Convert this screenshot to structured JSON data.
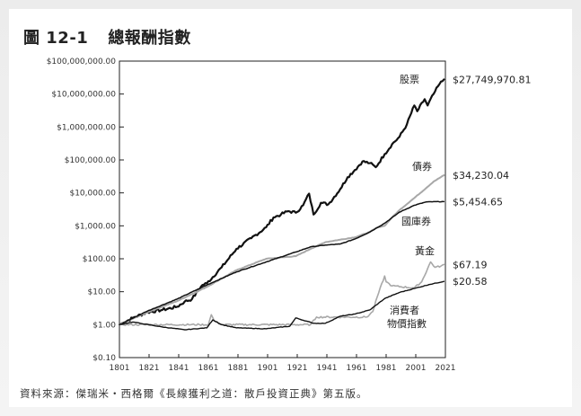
{
  "figure": {
    "number": "圖 12-1",
    "title": "總報酬指數",
    "source": "資料來源：傑瑞米・西格爾《長線獲利之道：散戶投資正典》第五版。"
  },
  "chart_data": {
    "type": "line",
    "y_scale": "log",
    "ylim": [
      0.1,
      100000000
    ],
    "xlim": [
      1801,
      2021
    ],
    "x_ticks": [
      "1801",
      "1821",
      "1841",
      "1861",
      "1881",
      "1901",
      "1921",
      "1941",
      "1961",
      "1981",
      "2001",
      "2021"
    ],
    "y_ticks": [
      {
        "value": 100000000,
        "label": "$100,000,000.00"
      },
      {
        "value": 10000000,
        "label": "$10,000,000.00"
      },
      {
        "value": 1000000,
        "label": "$1,000,000.00"
      },
      {
        "value": 100000,
        "label": "$100,000.00"
      },
      {
        "value": 10000,
        "label": "$10,000.00"
      },
      {
        "value": 1000,
        "label": "$1,000.00"
      },
      {
        "value": 100,
        "label": "$100.00"
      },
      {
        "value": 10,
        "label": "$10.00"
      },
      {
        "value": 1,
        "label": "$1.00"
      },
      {
        "value": 0.1,
        "label": "$0.10"
      }
    ],
    "series": [
      {
        "name": "股票",
        "end_label": "$27,749,970.81",
        "color": "#111111",
        "width": 2.2,
        "points": [
          [
            1801,
            1
          ],
          [
            1810,
            1.6
          ],
          [
            1820,
            2.4
          ],
          [
            1830,
            2.8
          ],
          [
            1840,
            3.5
          ],
          [
            1845,
            5
          ],
          [
            1850,
            6
          ],
          [
            1857,
            16
          ],
          [
            1860,
            18
          ],
          [
            1870,
            55
          ],
          [
            1880,
            200
          ],
          [
            1890,
            420
          ],
          [
            1900,
            900
          ],
          [
            1905,
            1800
          ],
          [
            1910,
            2200
          ],
          [
            1915,
            2800
          ],
          [
            1920,
            2500
          ],
          [
            1925,
            4200
          ],
          [
            1929,
            9500
          ],
          [
            1932,
            2200
          ],
          [
            1937,
            5000
          ],
          [
            1942,
            4500
          ],
          [
            1950,
            13000
          ],
          [
            1955,
            30000
          ],
          [
            1960,
            50000
          ],
          [
            1965,
            90000
          ],
          [
            1970,
            80000
          ],
          [
            1974,
            60000
          ],
          [
            1980,
            150000
          ],
          [
            1985,
            300000
          ],
          [
            1990,
            500000
          ],
          [
            1995,
            1200000
          ],
          [
            2000,
            4500000
          ],
          [
            2002,
            3000000
          ],
          [
            2007,
            7000000
          ],
          [
            2009,
            4500000
          ],
          [
            2013,
            10000000
          ],
          [
            2017,
            20000000
          ],
          [
            2020,
            27749970.81
          ]
        ]
      },
      {
        "name": "債券",
        "end_label": "$34,230.04",
        "color": "#a8a8a8",
        "width": 2,
        "points": [
          [
            1801,
            1
          ],
          [
            1820,
            2.4
          ],
          [
            1840,
            5.2
          ],
          [
            1860,
            14
          ],
          [
            1880,
            45
          ],
          [
            1900,
            100
          ],
          [
            1920,
            120
          ],
          [
            1930,
            200
          ],
          [
            1940,
            320
          ],
          [
            1950,
            380
          ],
          [
            1960,
            450
          ],
          [
            1970,
            650
          ],
          [
            1975,
            900
          ],
          [
            1980,
            1000
          ],
          [
            1985,
            1800
          ],
          [
            1990,
            3000
          ],
          [
            2000,
            7000
          ],
          [
            2008,
            14000
          ],
          [
            2013,
            22000
          ],
          [
            2020,
            34230.04
          ]
        ]
      },
      {
        "name": "國庫券",
        "end_label": "$5,454.65",
        "color": "#111111",
        "width": 1.5,
        "points": [
          [
            1801,
            1
          ],
          [
            1820,
            2.6
          ],
          [
            1840,
            6
          ],
          [
            1860,
            16
          ],
          [
            1880,
            40
          ],
          [
            1900,
            80
          ],
          [
            1920,
            160
          ],
          [
            1930,
            230
          ],
          [
            1940,
            260
          ],
          [
            1950,
            280
          ],
          [
            1960,
            400
          ],
          [
            1970,
            650
          ],
          [
            1980,
            1200
          ],
          [
            1990,
            2600
          ],
          [
            2000,
            4200
          ],
          [
            2008,
            5300
          ],
          [
            2020,
            5454.65
          ]
        ]
      },
      {
        "name": "黃金",
        "end_label": "$67.19",
        "color": "#a8a8a8",
        "width": 1.6,
        "points": [
          [
            1801,
            1
          ],
          [
            1855,
            1
          ],
          [
            1861,
            1
          ],
          [
            1863,
            2
          ],
          [
            1865,
            1.3
          ],
          [
            1870,
            1
          ],
          [
            1930,
            1
          ],
          [
            1934,
            1.7
          ],
          [
            1968,
            1.7
          ],
          [
            1972,
            2.5
          ],
          [
            1975,
            7
          ],
          [
            1980,
            30
          ],
          [
            1981,
            20
          ],
          [
            1985,
            15
          ],
          [
            2000,
            13
          ],
          [
            2005,
            20
          ],
          [
            2011,
            80
          ],
          [
            2014,
            55
          ],
          [
            2018,
            60
          ],
          [
            2020,
            67.19
          ]
        ]
      },
      {
        "name": "消費者物價指數",
        "end_label": "$20.58",
        "color": "#111111",
        "width": 1.4,
        "points": [
          [
            1801,
            1
          ],
          [
            1810,
            1.2
          ],
          [
            1815,
            1.1
          ],
          [
            1830,
            0.85
          ],
          [
            1845,
            0.7
          ],
          [
            1860,
            0.8
          ],
          [
            1864,
            1.4
          ],
          [
            1870,
            1
          ],
          [
            1880,
            0.8
          ],
          [
            1900,
            0.75
          ],
          [
            1916,
            0.9
          ],
          [
            1920,
            1.6
          ],
          [
            1932,
            1.1
          ],
          [
            1940,
            1.1
          ],
          [
            1950,
            1.8
          ],
          [
            1960,
            2.1
          ],
          [
            1970,
            2.8
          ],
          [
            1980,
            6.2
          ],
          [
            1990,
            9.5
          ],
          [
            2000,
            12.5
          ],
          [
            2010,
            16.5
          ],
          [
            2020,
            20.58
          ]
        ]
      }
    ],
    "labels": {
      "stocks": "股票",
      "bonds": "債券",
      "bills": "國庫券",
      "gold": "黃金",
      "cpi_line1": "消費者",
      "cpi_line2": "物價指數"
    }
  }
}
